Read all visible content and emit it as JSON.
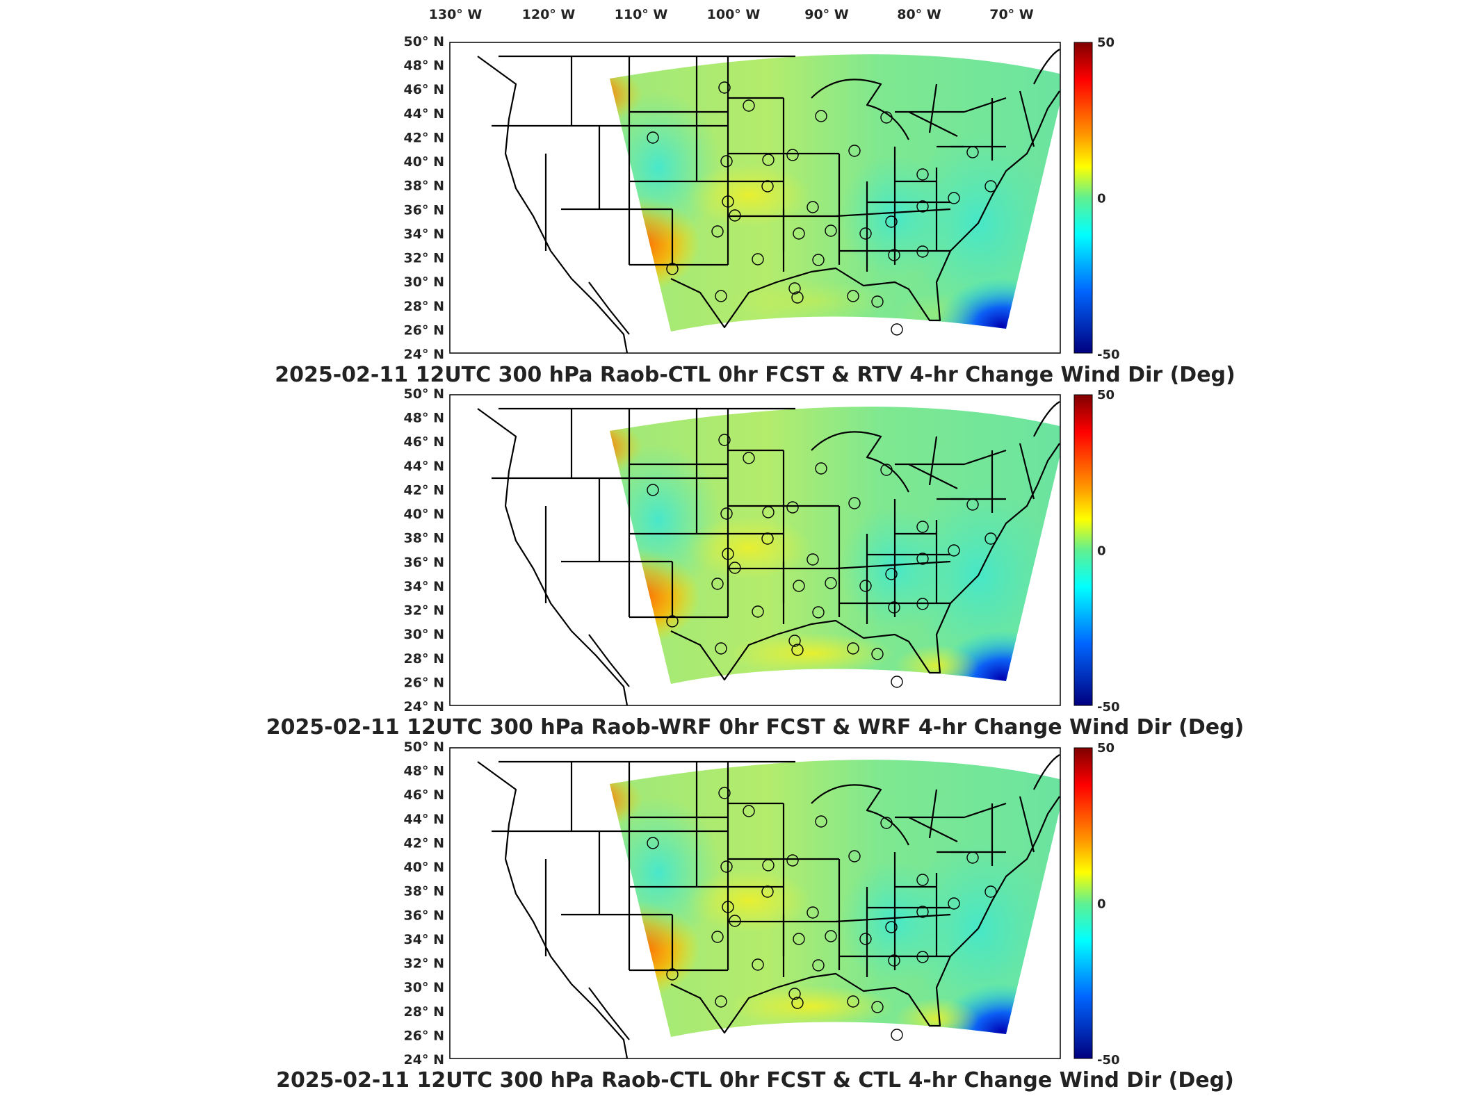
{
  "lon_labels": [
    "130° W",
    "120° W",
    "110° W",
    "100° W",
    "90° W",
    "80° W",
    "70° W"
  ],
  "lat_labels": [
    "50° N",
    "48° N",
    "46° N",
    "44° N",
    "42° N",
    "40° N",
    "38° N",
    "36° N",
    "34° N",
    "32° N",
    "30° N",
    "28° N",
    "26° N",
    "24° N"
  ],
  "colorbar": {
    "max_label": "50",
    "mid_label": "0",
    "min_label": "-50"
  },
  "panels": [
    {
      "title": "2025-02-11 12UTC 300 hPa Raob-CTL 0hr FCST & RTV 4-hr Change Wind Dir (Deg)"
    },
    {
      "title": "2025-02-11 12UTC 300 hPa Raob-WRF 0hr FCST & WRF 4-hr Change Wind Dir (Deg)"
    },
    {
      "title": "2025-02-11 12UTC 300 hPa Raob-CTL 0hr FCST & CTL 4-hr Change Wind Dir (Deg)"
    }
  ],
  "colors": {
    "red": "#8a0000",
    "yellow": "#ffff00",
    "green": "#5ff08a",
    "cyan": "#00ffff",
    "blue": "#000090"
  }
}
